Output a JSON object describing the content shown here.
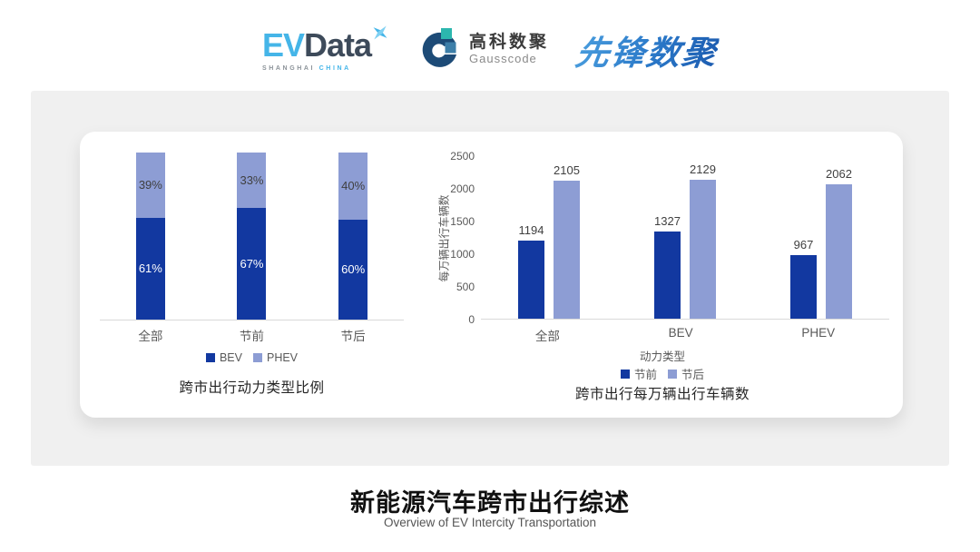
{
  "header": {
    "evdata_logo": {
      "ev": "EV",
      "data": "Data",
      "tagline_left": "SHANGHAI",
      "tagline_right": "CHINA"
    },
    "gausscode_logo": {
      "cn": "高科数聚",
      "en": "Gausscode"
    },
    "xianfeng_logo": {
      "text": "先锋数聚"
    }
  },
  "colors": {
    "dark_blue": "#1238a0",
    "light_periwinkle": "#8d9dd4",
    "evdata_blue": "#45b5e8",
    "evdata_slate": "#3d4a5a",
    "gauss_navy": "#1d4b77",
    "gauss_teal": "#2cb7ae",
    "gauss_steel": "#3d7fa9",
    "axis_line": "#d9d9d9",
    "text_gray": "#595959"
  },
  "chart_data": [
    {
      "type": "bar",
      "subtype": "stacked-percent",
      "title": "跨市出行动力类型比例",
      "categories": [
        "全部",
        "节前",
        "节后"
      ],
      "series": [
        {
          "name": "BEV",
          "color": "#1238a0",
          "values": [
            61,
            67,
            60
          ]
        },
        {
          "name": "PHEV",
          "color": "#8d9dd4",
          "values": [
            39,
            33,
            40
          ]
        }
      ],
      "unit": "%",
      "ylim": [
        0,
        100
      ],
      "grid": false,
      "legend_position": "bottom"
    },
    {
      "type": "bar",
      "subtype": "grouped",
      "title": "跨市出行每万辆出行车辆数",
      "xlabel": "动力类型",
      "ylabel": "每万辆出行车辆数",
      "categories": [
        "全部",
        "BEV",
        "PHEV"
      ],
      "series": [
        {
          "name": "节前",
          "color": "#1238a0",
          "values": [
            1194,
            1327,
            967
          ]
        },
        {
          "name": "节后",
          "color": "#8d9dd4",
          "values": [
            2105,
            2129,
            2062
          ]
        }
      ],
      "yticks": [
        0,
        500,
        1000,
        1500,
        2000,
        2500
      ],
      "ylim": [
        0,
        2500
      ],
      "grid": false,
      "legend_position": "bottom"
    }
  ],
  "footer": {
    "title": "新能源汽车跨市出行综述",
    "subtitle": "Overview of EV Intercity Transportation"
  }
}
